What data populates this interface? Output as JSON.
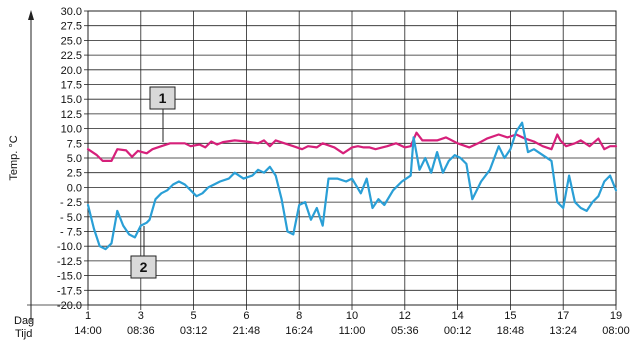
{
  "chart_data": {
    "type": "line",
    "ylabel": "Temp. °C",
    "xlabel_rows": [
      "Dag",
      "Tijd"
    ],
    "ylim": [
      -20,
      30
    ],
    "xlim": [
      1,
      19
    ],
    "grid": true,
    "y_ticks": [
      "30.0",
      "27.5",
      "25.0",
      "22.5",
      "20.0",
      "17.5",
      "15.0",
      "12.5",
      "10.0",
      "7.5",
      "5.0",
      "2.5",
      "0.0",
      "- 2.5",
      "- 5.0",
      "- 7.5",
      "-10.0",
      "-12.5",
      "-15.0",
      "-17.5",
      "-20.0"
    ],
    "x_ticks": [
      {
        "day": "1",
        "time": "14:00"
      },
      {
        "day": "3",
        "time": "08:36"
      },
      {
        "day": "5",
        "time": "03:12"
      },
      {
        "day": "6",
        "time": "21:48"
      },
      {
        "day": "8",
        "time": "16:24"
      },
      {
        "day": "10",
        "time": "11:00"
      },
      {
        "day": "12",
        "time": "05:36"
      },
      {
        "day": "14",
        "time": "00:12"
      },
      {
        "day": "15",
        "time": "18:48"
      },
      {
        "day": "17",
        "time": "13:24"
      },
      {
        "day": "19",
        "time": "08:00"
      }
    ],
    "series": [
      {
        "label": "1",
        "color": "#d6207a",
        "x": [
          1.0,
          1.3,
          1.5,
          1.8,
          2.0,
          2.3,
          2.5,
          2.7,
          3.0,
          3.2,
          3.5,
          3.8,
          4.0,
          4.3,
          4.5,
          4.8,
          5.0,
          5.2,
          5.4,
          5.6,
          6.0,
          6.4,
          6.8,
          7.0,
          7.2,
          7.4,
          7.7,
          8.0,
          8.3,
          8.5,
          8.8,
          9.0,
          9.4,
          9.7,
          10.0,
          10.2,
          10.4,
          10.6,
          10.8,
          11.2,
          11.5,
          11.8,
          12.0,
          12.2,
          12.4,
          12.6,
          12.9,
          13.2,
          13.6,
          14.0,
          14.3,
          14.6,
          15.0,
          15.3,
          15.6,
          15.9,
          16.2,
          16.5,
          16.8,
          17.0,
          17.1,
          17.3,
          17.6,
          17.8,
          18.1,
          18.4,
          18.6,
          18.8,
          19.0
        ],
        "y": [
          6.5,
          5.5,
          4.5,
          4.5,
          6.5,
          6.3,
          5.2,
          6.2,
          5.8,
          6.5,
          7.0,
          7.5,
          7.5,
          7.5,
          7.0,
          7.3,
          6.8,
          7.8,
          7.3,
          7.7,
          8.0,
          7.8,
          7.5,
          8.0,
          7.0,
          8.0,
          7.5,
          7.0,
          6.5,
          7.0,
          6.8,
          7.5,
          6.8,
          5.8,
          6.8,
          7.0,
          6.8,
          6.8,
          6.5,
          7.0,
          7.5,
          6.8,
          7.0,
          9.3,
          8.0,
          8.0,
          8.0,
          8.5,
          7.5,
          6.8,
          7.5,
          8.3,
          9.0,
          8.5,
          9.0,
          8.3,
          7.8,
          7.0,
          6.5,
          9.0,
          8.0,
          7.0,
          7.5,
          8.0,
          7.0,
          8.3,
          6.5,
          7.0,
          7.0
        ]
      },
      {
        "label": "2",
        "color": "#2a9fd6",
        "x": [
          1.0,
          1.2,
          1.4,
          1.6,
          1.8,
          2.0,
          2.2,
          2.4,
          2.6,
          2.8,
          3.0,
          3.1,
          3.3,
          3.5,
          3.7,
          3.9,
          4.1,
          4.3,
          4.5,
          4.7,
          4.9,
          5.1,
          5.3,
          5.5,
          5.8,
          6.0,
          6.3,
          6.6,
          6.8,
          7.0,
          7.2,
          7.4,
          7.6,
          7.8,
          8.0,
          8.2,
          8.4,
          8.6,
          8.8,
          9.0,
          9.2,
          9.5,
          9.8,
          10.0,
          10.3,
          10.5,
          10.7,
          10.9,
          11.1,
          11.4,
          11.7,
          12.0,
          12.1,
          12.3,
          12.5,
          12.7,
          12.9,
          13.1,
          13.3,
          13.5,
          13.7,
          13.9,
          14.1,
          14.4,
          14.7,
          15.0,
          15.2,
          15.4,
          15.6,
          15.8,
          16.0,
          16.2,
          16.5,
          16.8,
          17.0,
          17.2,
          17.4,
          17.6,
          17.8,
          18.0,
          18.2,
          18.4,
          18.6,
          18.8,
          19.0
        ],
        "y": [
          -3.0,
          -7.0,
          -10.0,
          -10.5,
          -9.5,
          -4.0,
          -6.5,
          -8.0,
          -8.5,
          -6.5,
          -6.0,
          -5.5,
          -2.0,
          -1.0,
          -0.5,
          0.5,
          1.0,
          0.5,
          -0.5,
          -1.5,
          -1.0,
          0.0,
          0.5,
          1.0,
          1.5,
          2.5,
          1.5,
          2.0,
          3.0,
          2.5,
          3.5,
          2.0,
          -2.0,
          -7.5,
          -8.0,
          -3.0,
          -2.5,
          -5.5,
          -3.5,
          -6.5,
          1.5,
          1.5,
          1.0,
          1.5,
          -1.0,
          1.5,
          -3.5,
          -2.0,
          -3.0,
          -0.5,
          1.0,
          2.0,
          8.5,
          3.0,
          5.0,
          2.5,
          6.0,
          2.5,
          4.5,
          5.5,
          5.0,
          4.0,
          -2.0,
          1.0,
          3.0,
          7.0,
          5.0,
          6.5,
          9.5,
          11.0,
          6.0,
          6.5,
          5.5,
          4.5,
          -2.5,
          -3.5,
          2.0,
          -2.5,
          -3.5,
          -4.0,
          -2.5,
          -1.5,
          1.0,
          2.0,
          -0.5
        ]
      }
    ],
    "annotations": [
      {
        "text": "1",
        "series": 0
      },
      {
        "text": "2",
        "series": 1
      }
    ]
  }
}
